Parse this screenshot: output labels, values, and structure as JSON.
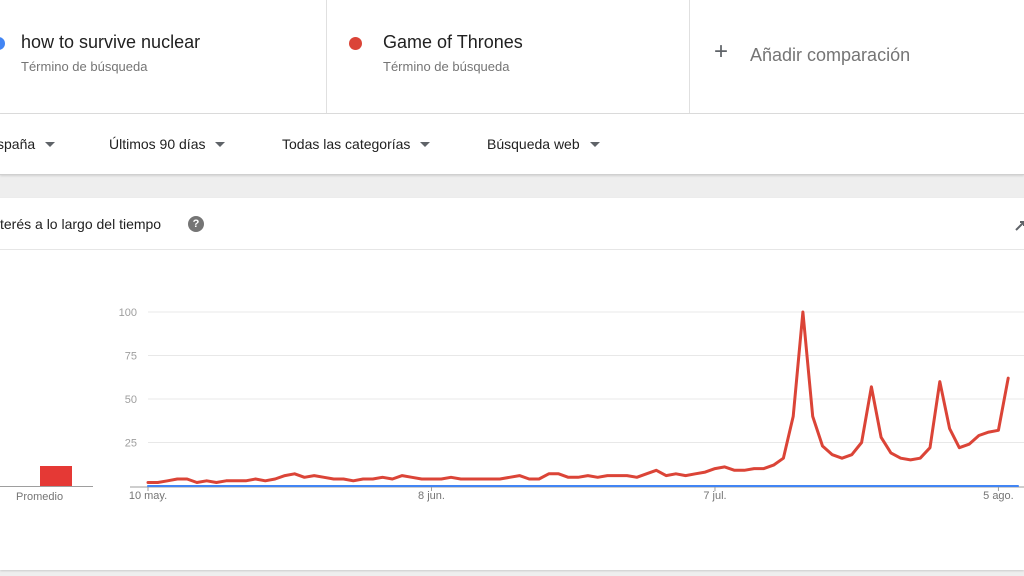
{
  "terms": [
    {
      "name": "how to survive nuclear",
      "type": "Término de búsqueda",
      "color": "#4285f4"
    },
    {
      "name": "Game of Thrones",
      "type": "Término de búsqueda",
      "color": "#db4437"
    }
  ],
  "add_comparison": {
    "icon": "plus-icon",
    "label": "Añadir comparación"
  },
  "filters": [
    {
      "label": "spaña",
      "icon": "caret-down-icon"
    },
    {
      "label": "Últimos 90 días",
      "icon": "caret-down-icon"
    },
    {
      "label": "Todas las categorías",
      "icon": "caret-down-icon"
    },
    {
      "label": "Búsqueda web",
      "icon": "caret-down-icon"
    }
  ],
  "interest_card": {
    "title": "terés a lo largo del tiempo",
    "help_icon": "help-icon",
    "share_icon": "share-icon",
    "average_label": "Promedio"
  },
  "chart_data": {
    "type": "line",
    "ylim": [
      0,
      100
    ],
    "yticks": [
      "100",
      "75",
      "50",
      "25"
    ],
    "xtick_labels": [
      "10 may.",
      "8 jun.",
      "7 jul.",
      "5 ago."
    ],
    "xtick_index": [
      0,
      29,
      58,
      87
    ],
    "series": [
      {
        "name": "how to survive nuclear",
        "color": "#4285f4",
        "values": [
          0,
          0,
          0,
          0,
          0,
          0,
          0,
          0,
          0,
          0,
          0,
          0,
          0,
          0,
          0,
          0,
          0,
          0,
          0,
          0,
          0,
          0,
          0,
          0,
          0,
          0,
          0,
          0,
          0,
          0,
          0,
          0,
          0,
          0,
          0,
          0,
          0,
          0,
          0,
          0,
          0,
          0,
          0,
          0,
          0,
          0,
          0,
          0,
          0,
          0,
          0,
          0,
          0,
          0,
          0,
          0,
          0,
          0,
          0,
          0,
          0,
          0,
          0,
          0,
          0,
          0,
          0,
          0,
          0,
          0,
          0,
          0,
          0,
          0,
          0,
          0,
          0,
          0,
          0,
          0,
          0,
          0,
          0,
          0,
          0,
          0,
          0,
          0,
          0,
          0
        ]
      },
      {
        "name": "Game of Thrones",
        "color": "#db4437",
        "values": [
          2,
          2,
          3,
          4,
          4,
          2,
          3,
          2,
          3,
          3,
          3,
          4,
          3,
          4,
          6,
          7,
          5,
          6,
          5,
          4,
          4,
          3,
          4,
          4,
          5,
          4,
          6,
          5,
          4,
          4,
          4,
          5,
          4,
          4,
          4,
          4,
          4,
          5,
          6,
          4,
          4,
          7,
          7,
          5,
          5,
          6,
          5,
          6,
          6,
          6,
          5,
          7,
          9,
          6,
          7,
          6,
          7,
          8,
          10,
          11,
          9,
          9,
          10,
          10,
          12,
          16,
          40,
          100,
          40,
          23,
          18,
          16,
          18,
          25,
          57,
          28,
          19,
          16,
          15,
          16,
          22,
          60,
          33,
          22,
          24,
          29,
          31,
          32,
          62
        ]
      }
    ]
  }
}
